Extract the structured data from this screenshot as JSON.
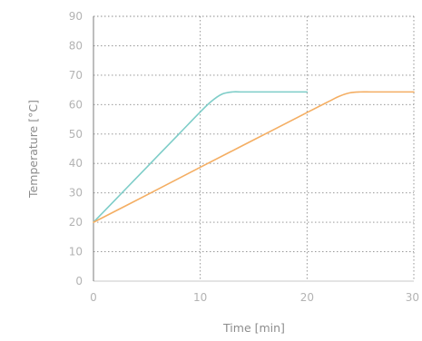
{
  "chart_data": {
    "type": "line",
    "xlabel": "Time [min]",
    "ylabel": "Temperature [°C]",
    "xlim": [
      0,
      30
    ],
    "ylim": [
      0,
      90
    ],
    "x_ticks": [
      "0",
      "10",
      "20",
      "30"
    ],
    "y_ticks": [
      "0",
      "10",
      "20",
      "30",
      "40",
      "50",
      "60",
      "70",
      "80",
      "90"
    ],
    "grid": true,
    "series": [
      {
        "color": "#7ecdc8",
        "x": [
          0,
          2,
          4,
          6,
          8,
          10,
          11,
          12,
          13,
          14,
          16,
          18,
          20
        ],
        "y": [
          20,
          27.5,
          35,
          42.5,
          50,
          57.5,
          61,
          63.5,
          64.3,
          64.3,
          64.3,
          64.3,
          64.3
        ]
      },
      {
        "color": "#f4ae63",
        "x": [
          0,
          5,
          10,
          15,
          20,
          22,
          23,
          24,
          25,
          26,
          28,
          30
        ],
        "y": [
          20,
          29.3,
          38.7,
          48,
          57.3,
          61,
          62.8,
          64,
          64.3,
          64.3,
          64.3,
          64.3
        ]
      }
    ]
  }
}
